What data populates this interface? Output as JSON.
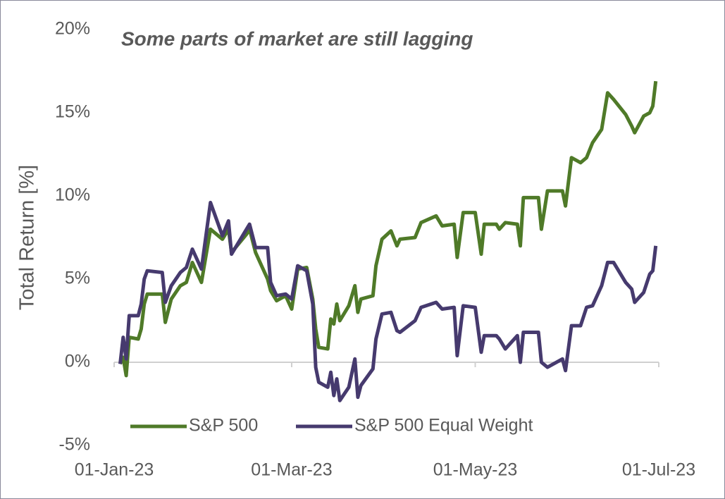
{
  "chart_data": {
    "type": "line",
    "title": "Some parts of market are still lagging",
    "y_label": "Total Return [%]",
    "x": [
      "2023-01-03",
      "2023-01-04",
      "2023-01-05",
      "2023-01-06",
      "2023-01-09",
      "2023-01-10",
      "2023-01-11",
      "2023-01-12",
      "2023-01-17",
      "2023-01-18",
      "2023-01-20",
      "2023-01-23",
      "2023-01-25",
      "2023-01-27",
      "2023-01-30",
      "2023-02-02",
      "2023-02-06",
      "2023-02-08",
      "2023-02-09",
      "2023-02-14",
      "2023-02-15",
      "2023-02-17",
      "2023-02-21",
      "2023-02-22",
      "2023-02-24",
      "2023-02-27",
      "2023-03-01",
      "2023-03-03",
      "2023-03-06",
      "2023-03-08",
      "2023-03-09",
      "2023-03-10",
      "2023-03-13",
      "2023-03-14",
      "2023-03-15",
      "2023-03-16",
      "2023-03-17",
      "2023-03-20",
      "2023-03-22",
      "2023-03-23",
      "2023-03-24",
      "2023-03-28",
      "2023-03-29",
      "2023-03-31",
      "2023-04-03",
      "2023-04-05",
      "2023-04-06",
      "2023-04-11",
      "2023-04-13",
      "2023-04-18",
      "2023-04-20",
      "2023-04-24",
      "2023-04-25",
      "2023-04-27",
      "2023-05-01",
      "2023-05-03",
      "2023-05-04",
      "2023-05-08",
      "2023-05-09",
      "2023-05-11",
      "2023-05-15",
      "2023-05-16",
      "2023-05-17",
      "2023-05-22",
      "2023-05-23",
      "2023-05-25",
      "2023-05-30",
      "2023-05-31",
      "2023-06-02",
      "2023-06-05",
      "2023-06-07",
      "2023-06-09",
      "2023-06-12",
      "2023-06-14",
      "2023-06-16",
      "2023-06-20",
      "2023-06-22",
      "2023-06-23",
      "2023-06-26",
      "2023-06-28",
      "2023-06-29",
      "2023-06-30"
    ],
    "series": [
      {
        "name": "S&P 500",
        "color": "#4f7a28",
        "values": [
          -0.1,
          0.3,
          -0.8,
          1.5,
          1.4,
          2.0,
          3.5,
          4.1,
          4.1,
          2.4,
          3.8,
          4.6,
          4.8,
          6.0,
          4.8,
          8.0,
          7.4,
          8.0,
          6.6,
          7.7,
          8.0,
          6.6,
          5.0,
          4.3,
          3.7,
          4.0,
          3.2,
          5.6,
          5.7,
          3.8,
          2.0,
          0.9,
          0.8,
          2.6,
          2.3,
          3.5,
          2.5,
          3.4,
          4.6,
          3.0,
          3.8,
          4.0,
          5.8,
          7.4,
          7.9,
          7.0,
          7.4,
          7.5,
          8.4,
          8.8,
          8.2,
          8.3,
          6.3,
          9.0,
          9.0,
          6.5,
          8.3,
          8.3,
          8.0,
          8.4,
          8.3,
          7.0,
          9.9,
          9.9,
          8.0,
          10.3,
          10.3,
          9.4,
          12.3,
          12.0,
          12.3,
          13.2,
          14.0,
          16.2,
          15.8,
          14.9,
          14.2,
          13.8,
          14.8,
          15.0,
          15.4,
          16.9
        ]
      },
      {
        "name": "S&P 500 Equal Weight",
        "color": "#463a6e",
        "values": [
          -0.1,
          1.5,
          0.2,
          2.8,
          2.8,
          3.5,
          5.0,
          5.5,
          5.4,
          3.6,
          4.6,
          5.4,
          5.7,
          6.8,
          5.6,
          9.6,
          7.6,
          8.5,
          6.5,
          8.0,
          8.3,
          6.9,
          6.9,
          4.8,
          4.0,
          4.1,
          3.8,
          5.8,
          5.5,
          3.5,
          -0.3,
          -1.2,
          -1.5,
          -0.6,
          -2.0,
          -1.0,
          -2.3,
          -1.5,
          0.2,
          -2.1,
          -1.4,
          -0.4,
          1.4,
          2.9,
          3.0,
          1.9,
          1.8,
          2.5,
          3.3,
          3.6,
          3.2,
          3.3,
          0.4,
          3.4,
          3.3,
          0.6,
          1.6,
          1.6,
          1.4,
          0.8,
          1.6,
          0.0,
          1.8,
          1.8,
          0.0,
          -0.3,
          0.2,
          -0.5,
          2.2,
          2.2,
          3.3,
          3.4,
          4.6,
          6.0,
          6.0,
          4.8,
          4.4,
          3.6,
          4.2,
          5.3,
          5.5,
          7.0
        ]
      }
    ],
    "xlim": [
      "2023-01-01",
      "2023-07-01"
    ],
    "xticks": [
      {
        "value": "2023-01-01",
        "label": "01-Jan-23"
      },
      {
        "value": "2023-03-01",
        "label": "01-Mar-23"
      },
      {
        "value": "2023-05-01",
        "label": "01-May-23"
      },
      {
        "value": "2023-07-01",
        "label": "01-Jul-23"
      }
    ],
    "ylim": [
      -5,
      20
    ],
    "yticks": [
      {
        "value": -5,
        "label": "-5%"
      },
      {
        "value": 0,
        "label": "0%"
      },
      {
        "value": 5,
        "label": "5%"
      },
      {
        "value": 10,
        "label": "10%"
      },
      {
        "value": 15,
        "label": "15%"
      },
      {
        "value": 20,
        "label": "20%"
      }
    ],
    "legend": "bottom"
  }
}
